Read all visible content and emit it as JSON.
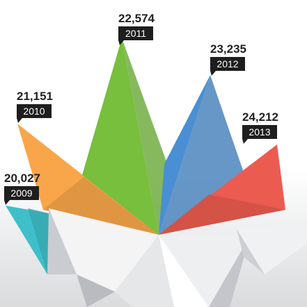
{
  "chart_data": {
    "type": "origami",
    "categories": [
      "2009",
      "2010",
      "2011",
      "2012",
      "2013"
    ],
    "values": [
      20027,
      21151,
      22574,
      23235,
      24212
    ],
    "value_labels": [
      "20,027",
      "21,151",
      "22,574",
      "23,235",
      "24,212"
    ],
    "colors": [
      "#3fbfc9",
      "#f9a64a",
      "#77bf3c",
      "#4a8fd3",
      "#ec5b50"
    ]
  }
}
